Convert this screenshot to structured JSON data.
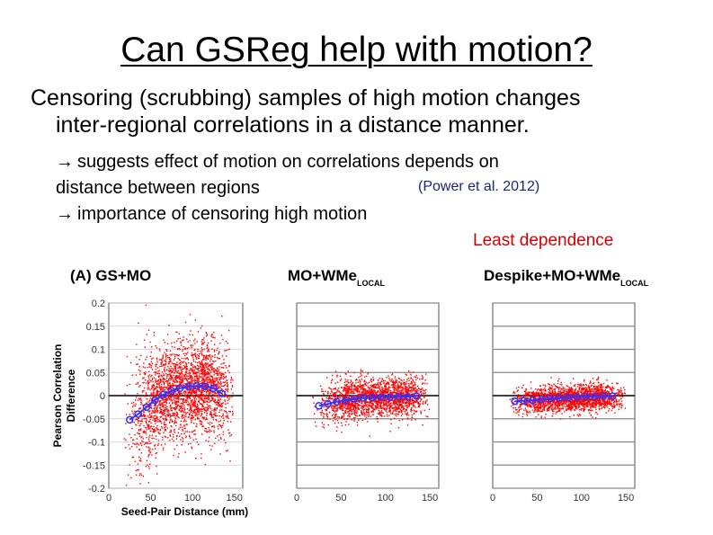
{
  "slide": {
    "title": "Can GSReg help with motion?",
    "bullet_line1": "Censoring (scrubbing) samples of high motion changes",
    "bullet_line2": "inter-regional correlations in a distance manner.",
    "sub_line1": "suggests effect of motion on correlations depends on",
    "sub_line2": "distance between regions",
    "sub_line3": "importance of censoring high motion",
    "citation": "(Power et al. 2012)",
    "least_dependence": "Least dependence",
    "arrow_glyph": "→"
  },
  "chart_data": [
    {
      "type": "scatter",
      "title": "(A) GS+MO",
      "xlabel": "Seed-Pair Distance (mm)",
      "ylabel_line1": "Pearson Correlation",
      "ylabel_line2": "Difference",
      "xlim": [
        0,
        160
      ],
      "ylim": [
        -0.2,
        0.2
      ],
      "x_ticks": [
        "0",
        "50",
        "100",
        "150"
      ],
      "y_ticks": [
        "0.2",
        "0.15",
        "0.1",
        "0.05",
        "0",
        "-0.05",
        "-0.1",
        "-0.15",
        "-0.2"
      ],
      "cloud_color": "#ff0000",
      "trend_color": "#3333ff",
      "cloud_spread": 0.05,
      "trend": {
        "x": [
          25,
          35,
          45,
          55,
          65,
          75,
          85,
          95,
          105,
          115,
          125,
          135
        ],
        "y": [
          -0.052,
          -0.04,
          -0.025,
          -0.01,
          0.002,
          0.01,
          0.016,
          0.02,
          0.021,
          0.02,
          0.016,
          0.005
        ]
      }
    },
    {
      "type": "scatter",
      "title_main": "MO+WMe",
      "title_sub": "LOCAL",
      "xlim": [
        0,
        160
      ],
      "ylim": [
        -0.2,
        0.2
      ],
      "x_ticks": [
        "0",
        "50",
        "100",
        "150"
      ],
      "cloud_color": "#ff0000",
      "trend_color": "#3333ff",
      "cloud_spread": 0.022,
      "trend": {
        "x": [
          25,
          35,
          45,
          55,
          65,
          75,
          85,
          95,
          105,
          115,
          125,
          135
        ],
        "y": [
          -0.022,
          -0.018,
          -0.013,
          -0.01,
          -0.007,
          -0.005,
          -0.004,
          -0.003,
          -0.003,
          -0.002,
          -0.002,
          -0.001
        ]
      }
    },
    {
      "type": "scatter",
      "title_main": "Despike+MO+WMe",
      "title_sub": "LOCAL",
      "xlim": [
        0,
        160
      ],
      "ylim": [
        -0.2,
        0.2
      ],
      "x_ticks": [
        "0",
        "50",
        "100",
        "150"
      ],
      "cloud_color": "#ff0000",
      "trend_color": "#3333ff",
      "cloud_spread": 0.014,
      "trend": {
        "x": [
          25,
          35,
          45,
          55,
          65,
          75,
          85,
          95,
          105,
          115,
          125,
          135
        ],
        "y": [
          -0.012,
          -0.011,
          -0.01,
          -0.008,
          -0.006,
          -0.005,
          -0.004,
          -0.003,
          -0.002,
          -0.002,
          -0.001,
          -0.001
        ]
      }
    }
  ]
}
